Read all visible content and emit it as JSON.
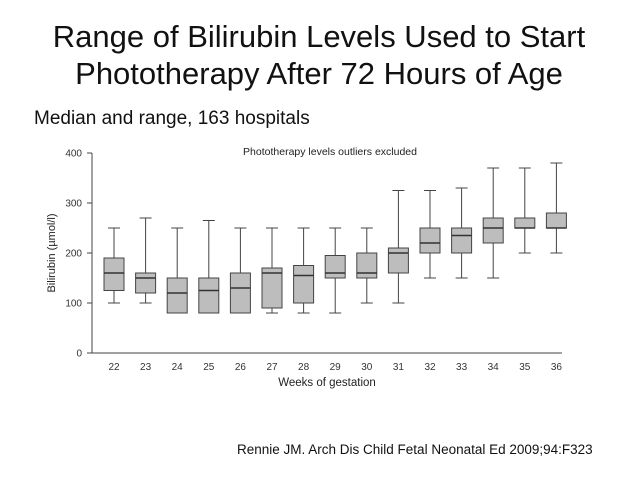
{
  "slide": {
    "title_line1": "Range of Bilirubin Levels Used to Start",
    "title_line2": "Phototherapy After 72 Hours of Age",
    "subtitle": "Median and range, 163 hospitals",
    "citation": "Rennie JM. Arch Dis Child Fetal Neonatal Ed 2009;94:F323"
  },
  "chart_data": {
    "type": "boxplot",
    "title": "Phototherapy levels outliers excluded",
    "xlabel": "Weeks of gestation",
    "ylabel": "Bilirubin (µmol/l)",
    "ylim": [
      0,
      400
    ],
    "yticks": [
      0,
      100,
      200,
      300,
      400
    ],
    "grid": false,
    "box_color": "#bdbdbd",
    "categories": [
      "22",
      "23",
      "24",
      "25",
      "26",
      "27",
      "28",
      "29",
      "30",
      "31",
      "32",
      "33",
      "34",
      "35",
      "36"
    ],
    "boxes": [
      {
        "min": 100,
        "q1": 125,
        "median": 160,
        "q3": 190,
        "max": 250
      },
      {
        "min": 100,
        "q1": 120,
        "median": 150,
        "q3": 160,
        "max": 270
      },
      {
        "min": 80,
        "q1": 80,
        "median": 120,
        "q3": 150,
        "max": 250
      },
      {
        "min": 80,
        "q1": 80,
        "median": 125,
        "q3": 150,
        "max": 265
      },
      {
        "min": 80,
        "q1": 80,
        "median": 130,
        "q3": 160,
        "max": 250
      },
      {
        "min": 80,
        "q1": 90,
        "median": 160,
        "q3": 170,
        "max": 250
      },
      {
        "min": 80,
        "q1": 100,
        "median": 155,
        "q3": 175,
        "max": 250
      },
      {
        "min": 80,
        "q1": 150,
        "median": 160,
        "q3": 195,
        "max": 250
      },
      {
        "min": 100,
        "q1": 150,
        "median": 160,
        "q3": 200,
        "max": 250
      },
      {
        "min": 100,
        "q1": 160,
        "median": 200,
        "q3": 210,
        "max": 325
      },
      {
        "min": 150,
        "q1": 200,
        "median": 220,
        "q3": 250,
        "max": 325
      },
      {
        "min": 150,
        "q1": 200,
        "median": 235,
        "q3": 250,
        "max": 330
      },
      {
        "min": 150,
        "q1": 220,
        "median": 250,
        "q3": 270,
        "max": 370
      },
      {
        "min": 200,
        "q1": 250,
        "median": 250,
        "q3": 270,
        "max": 370
      },
      {
        "min": 200,
        "q1": 250,
        "median": 250,
        "q3": 280,
        "max": 380
      }
    ]
  }
}
